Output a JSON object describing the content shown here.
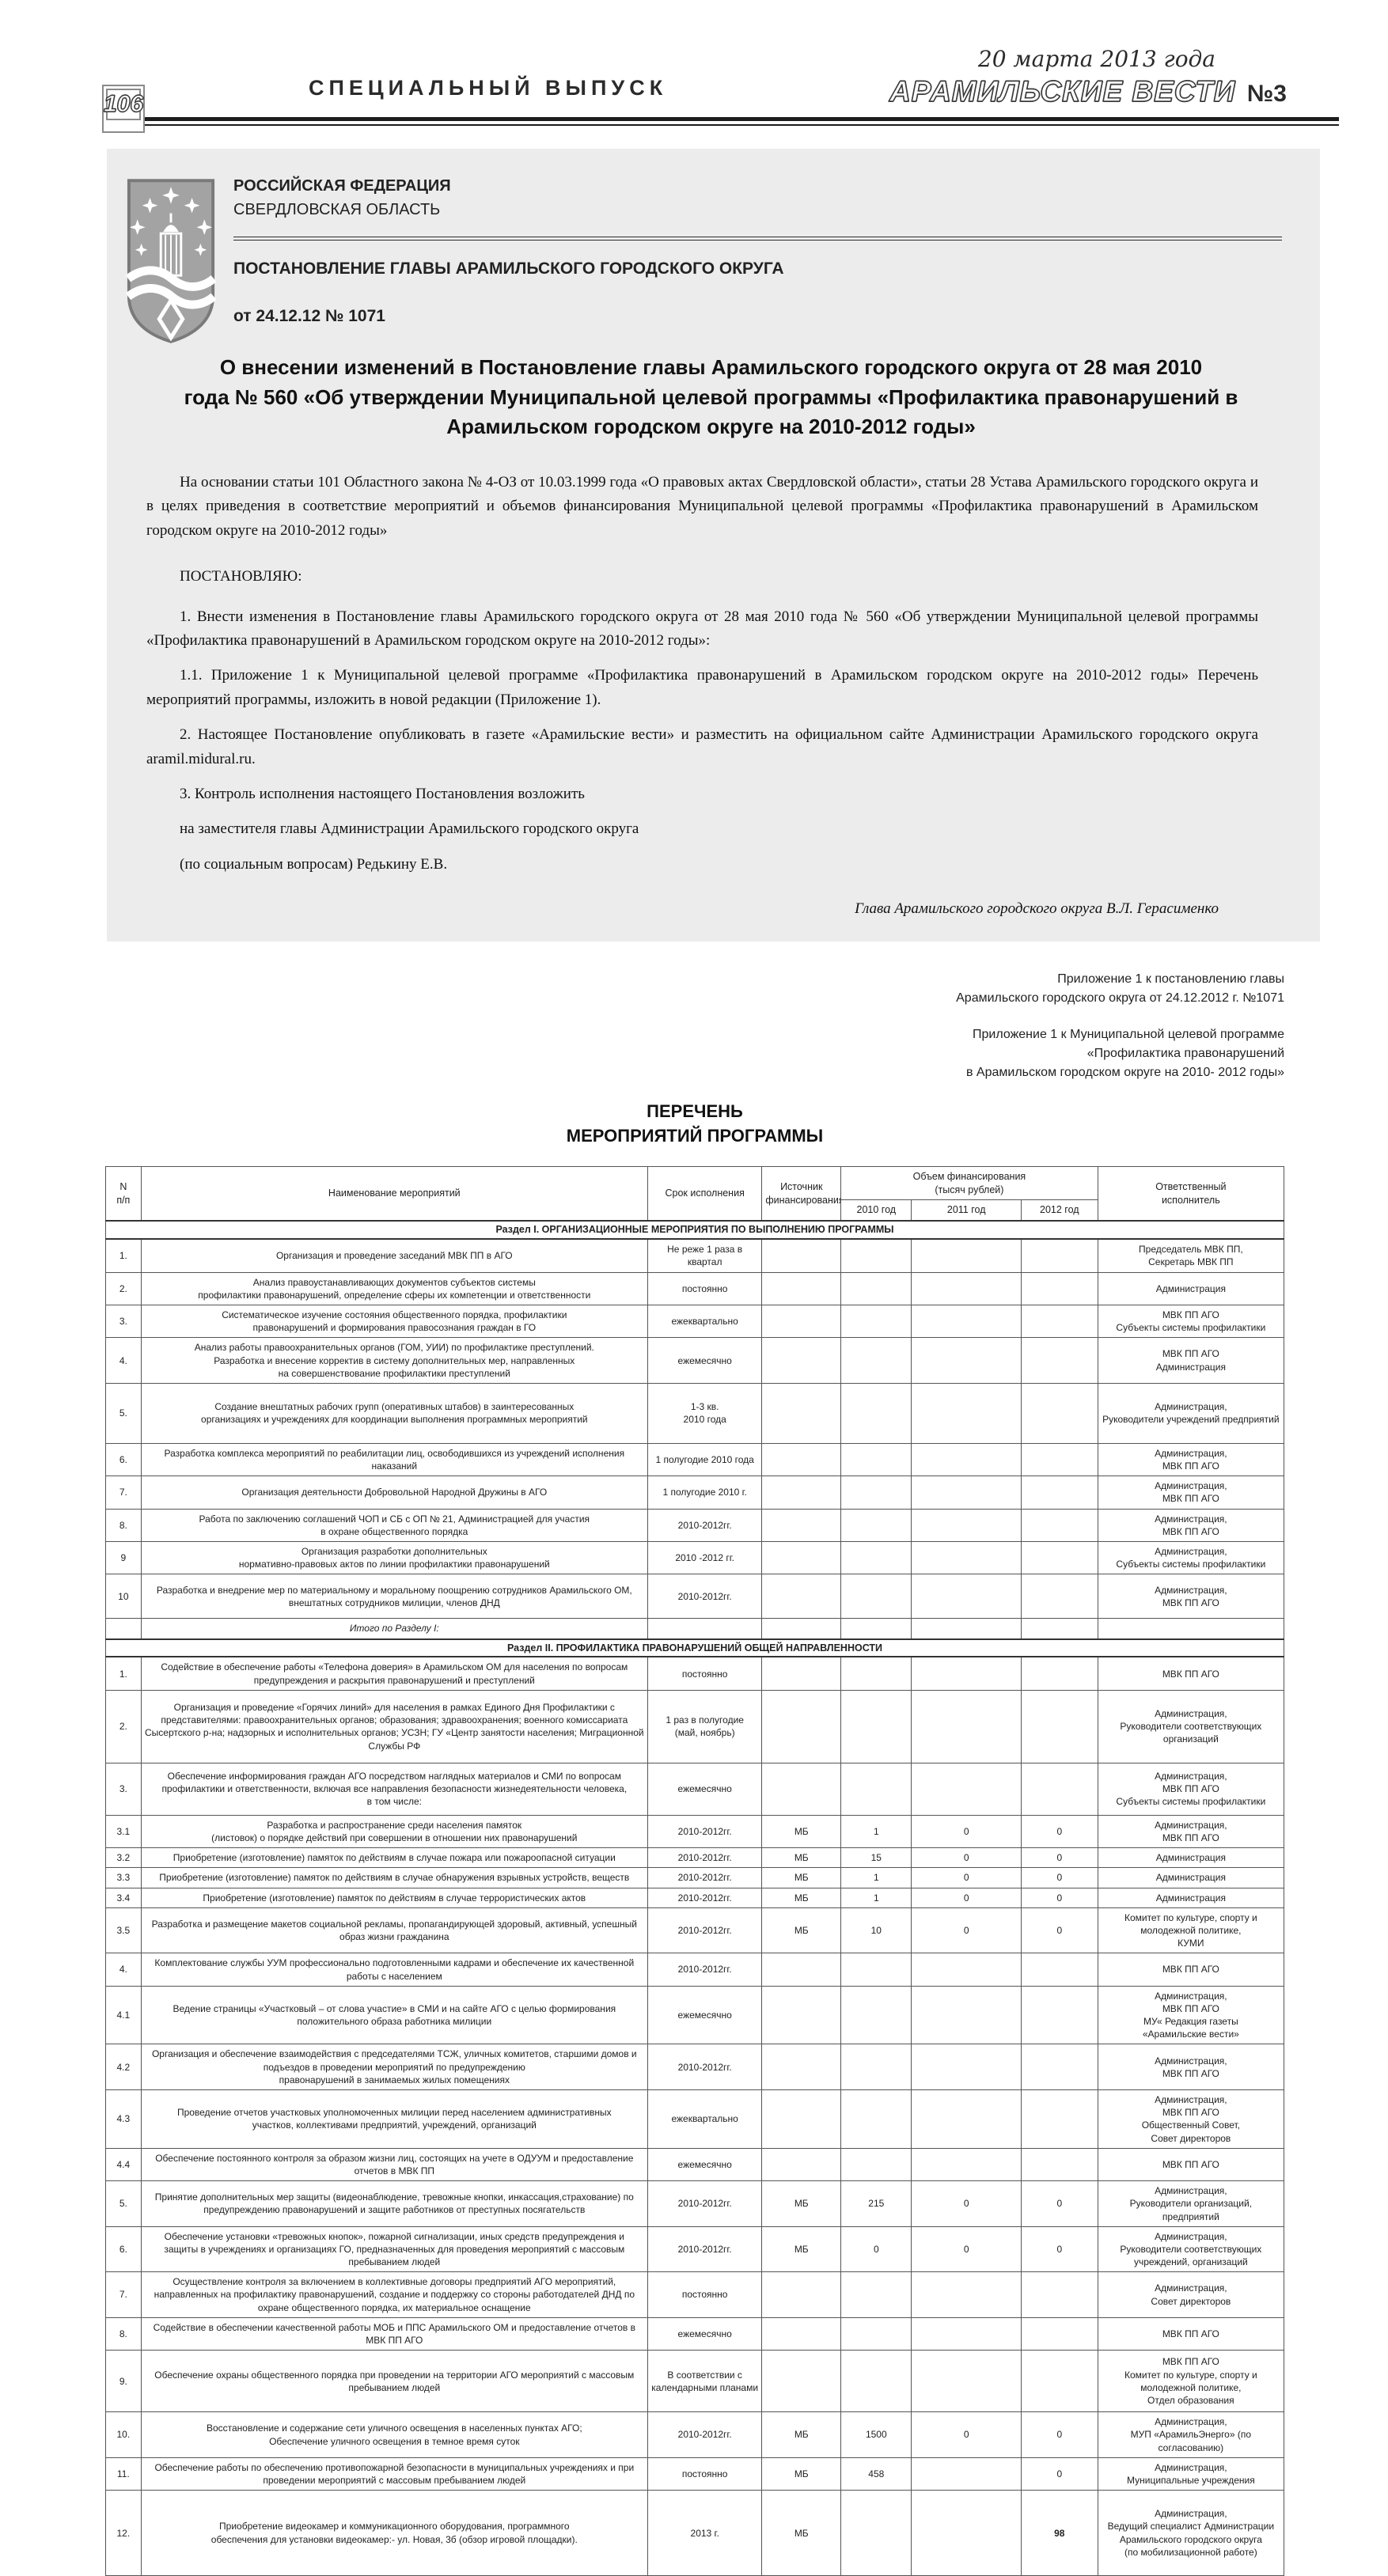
{
  "masthead": {
    "page_number": "106",
    "special_issue": "СПЕЦИАЛЬНЫЙ ВЫПУСК",
    "date": "20 марта 2013 года",
    "title": "АРАМИЛЬСКИЕ ВЕСТИ",
    "issue": "№3"
  },
  "decree": {
    "country": "РОССИЙСКАЯ ФЕДЕРАЦИЯ",
    "region": "СВЕРДЛОВСКАЯ ОБЛАСТЬ",
    "doc_type": "ПОСТАНОВЛЕНИЕ ГЛАВЫ  АРАМИЛЬСКОГО ГОРОДСКОГО ОКРУГА",
    "doc_date": "от 24.12.12 № 1071",
    "title": "О внесении изменений в Постановление главы Арамильского городского округа от 28 мая 2010\nгода № 560 «Об утверждении Муниципальной целевой программы «Профилактика правонарушений в\nАрамильском городском округе на 2010-2012 годы»",
    "preamble": "На основании статьи 101 Областного закона № 4-ОЗ от 10.03.1999 года «О правовых актах Свердловской области», статьи 28 Устава Арамильского городского округа и в целях приведения в соответствие мероприятий и объемов финансирования Муниципальной целевой программы «Профилактика правонарушений в Арамильском городском округе на 2010-2012 годы»",
    "resolve": "ПОСТАНОВЛЯЮ:",
    "p1": "1. Внести изменения в  Постановление главы Арамильского городского округа  от 28 мая 2010 года № 560 «Об утверждении Муниципальной целевой программы «Профилактика правонарушений в Арамильском городском округе на 2010-2012 годы»:",
    "p2": "1.1. Приложение 1 к Муниципальной целевой программе «Профилактика правонарушений в Арамильском городском округе на 2010-2012 годы» Перечень мероприятий программы, изложить в новой редакции (Приложение 1).",
    "p3": "2. Настоящее Постановление опубликовать в газете «Арамильские вести» и разместить на официальном сайте Администрации Арамильского городского округа aramil.midural.ru.",
    "p4": "3. Контроль исполнения настоящего Постановления возложить",
    "p5": "на заместителя главы Администрации Арамильского городского округа",
    "p6": "(по социальным вопросам) Редькину Е.В.",
    "signature": "Глава Арамильского городского округа  В.Л. Герасименко"
  },
  "appendix": {
    "block1": "Приложение 1 к постановлению главы\nАрамильского городского округа от 24.12.2012 г.  №1071",
    "block2": "Приложение 1 к Муниципальной целевой программе\n«Профилактика правонарушений\nв Арамильском городском округе  на 2010- 2012 годы»"
  },
  "list_heading": "ПЕРЕЧЕНЬ\nМЕРОПРИЯТИЙ ПРОГРАММЫ",
  "table": {
    "headers": {
      "num": "N\nп/п",
      "name": "Наименование мероприятий",
      "term": "Срок исполнения",
      "source": "Источник\nфинансирования",
      "financing": "Объем финансирования\n(тысяч рублей)",
      "y2010": "2010 год",
      "y2011": "2011 год",
      "y2012": "2012 год",
      "resp": "Ответственный\nисполнитель"
    },
    "sections": [
      {
        "title": "Раздел I. ОРГАНИЗАЦИОННЫЕ МЕРОПРИЯТИЯ ПО ВЫПОЛНЕНИЮ ПРОГРАММЫ",
        "rows": [
          {
            "num": "1.",
            "name": "Организация и проведение заседаний МВК ПП в АГО",
            "term": "Не реже 1 раза в квартал",
            "source": "",
            "y2010": "",
            "y2011": "",
            "y2012": "",
            "resp": "Председатель МВК ПП,\nСекретарь МВК ПП"
          },
          {
            "num": "2.",
            "name": "Анализ правоустанавливающих документов субъектов системы\nпрофилактики правонарушений, определение сферы их компетенции и ответственности",
            "term": "постоянно",
            "source": "",
            "y2010": "",
            "y2011": "",
            "y2012": "",
            "resp": "Администрация"
          },
          {
            "num": "3.",
            "name": "Систематическое изучение состояния общественного порядка, профилактики\nправонарушений и формирования правосознания граждан в ГО",
            "term": "ежеквартально",
            "source": "",
            "y2010": "",
            "y2011": "",
            "y2012": "",
            "resp": "МВК ПП АГО\nСубъекты системы профилактики"
          },
          {
            "num": "4.",
            "name": "Анализ работы правоохранительных органов (ГОМ, УИИ) по профилактике преступлений.\nРазработка и внесение корректив  в систему дополнительных мер,  направленных\nна совершенствование профилактики преступлений",
            "term": "ежемесячно",
            "source": "",
            "y2010": "",
            "y2011": "",
            "y2012": "",
            "resp": "МВК ПП АГО\nАдминистрация"
          },
          {
            "num": "5.",
            "name": "Создание внештатных рабочих групп (оперативных штабов) в заинтересованных\nорганизациях и учреждениях для координации выполнения программных мероприятий",
            "term": "1-3 кв.\n2010 года",
            "source": "",
            "y2010": "",
            "y2011": "",
            "y2012": "",
            "resp": "Администрация,\nРуководители учреждений предприятий",
            "h": 76
          },
          {
            "num": "6.",
            "name": "Разработка комплекса мероприятий по реабилитации лиц, освободившихся из учреждений исполнения\nнаказаний",
            "term": "1 полугодие 2010 года",
            "source": "",
            "y2010": "",
            "y2011": "",
            "y2012": "",
            "resp": "Администрация,\nМВК ПП АГО"
          },
          {
            "num": "7.",
            "name": "Организация деятельности Добровольной Народной Дружины в АГО",
            "term": "1 полугодие 2010 г.",
            "source": "",
            "y2010": "",
            "y2011": "",
            "y2012": "",
            "resp": "Администрация,\nМВК ПП АГО"
          },
          {
            "num": "8.",
            "name": "Работа по заключению соглашений ЧОП и СБ с ОП № 21,  Администрацией для участия\nв охране общественного порядка",
            "term": "2010-2012гг.",
            "source": "",
            "y2010": "",
            "y2011": "",
            "y2012": "",
            "resp": "Администрация,\nМВК ПП АГО"
          },
          {
            "num": "9",
            "name": "Организация разработки дополнительных\nнормативно-правовых актов по линии профилактики правонарушений",
            "term": "2010 -2012 гг.",
            "source": "",
            "y2010": "",
            "y2011": "",
            "y2012": "",
            "resp": "Администрация,\nСубъекты системы профилактики"
          },
          {
            "num": "10",
            "name": "Разработка  и внедрение мер по материальному и моральному поощрению сотрудников Арамильского ОМ,\nвнештатных сотрудников милиции, членов ДНД",
            "term": "2010-2012гг.",
            "source": "",
            "y2010": "",
            "y2011": "",
            "y2012": "",
            "resp": "Администрация,\nМВК ПП АГО",
            "h": 56
          },
          {
            "num": "",
            "name": "Итого по Разделу I:",
            "term": "",
            "source": "",
            "y2010": "",
            "y2011": "",
            "y2012": "",
            "resp": "",
            "italic": true
          }
        ]
      },
      {
        "title": "Раздел II. ПРОФИЛАКТИКА ПРАВОНАРУШЕНИЙ ОБЩЕЙ НАПРАВЛЕННОСТИ",
        "rows": [
          {
            "num": "1.",
            "name": "Содействие в обеспечение работы  «Телефона доверия» в Арамильском ОМ для населения по вопросам\nпредупреждения и раскрытия правонарушений и преступлений",
            "term": "постоянно",
            "source": "",
            "y2010": "",
            "y2011": "",
            "y2012": "",
            "resp": "МВК ПП АГО"
          },
          {
            "num": "2.",
            "name": "Организация и проведение «Горячих линий»  для населения в рамках Единого Дня Профилактики с\nпредставителями: правоохранительных органов; образования; здравоохранения; военного комиссариата\nСысертского р-на; надзорных и исполнительных органов; УСЗН; ГУ «Центр занятости населения; Миграционной\nСлужбы РФ",
            "term": "1 раз в полугодие\n(май, ноябрь)",
            "source": "",
            "y2010": "",
            "y2011": "",
            "y2012": "",
            "resp": "Администрация,\nРуководители соответствующих\nорганизаций",
            "h": 92
          },
          {
            "num": "3.",
            "name": "Обеспечение информирования граждан АГО посредством наглядных материалов и СМИ по вопросам\nпрофилактики и ответственности, включая все направления безопасности жизнедеятельности человека,\nв том числе:",
            "term": "ежемесячно",
            "source": "",
            "y2010": "",
            "y2011": "",
            "y2012": "",
            "resp": "Администрация,\nМВК ПП АГО\nСубъекты системы профилактики",
            "h": 66
          },
          {
            "num": "3.1",
            "name": "Разработка и распространение среди населения памяток\n(листовок) о порядке действий при совершении в отношении них правонарушений",
            "term": "2010-2012гг.",
            "source": "МБ",
            "y2010": "1",
            "y2011": "0",
            "y2012": "0",
            "resp": "Администрация,\nМВК ПП АГО"
          },
          {
            "num": "3.2",
            "name": "Приобретение (изготовление) памяток по действиям в случае пожара или пожароопасной ситуации",
            "term": "2010-2012гг.",
            "source": "МБ",
            "y2010": "15",
            "y2011": "0",
            "y2012": "0",
            "resp": "Администрация"
          },
          {
            "num": "3.3",
            "name": "Приобретение (изготовление) памяток по действиям в случае обнаружения взрывных устройств, веществ",
            "term": "2010-2012гг.",
            "source": "МБ",
            "y2010": "1",
            "y2011": "0",
            "y2012": "0",
            "resp": "Администрация"
          },
          {
            "num": "3.4",
            "name": "Приобретение (изготовление) памяток по действиям в случае террористических актов",
            "term": "2010-2012гг.",
            "source": "МБ",
            "y2010": "1",
            "y2011": "0",
            "y2012": "0",
            "resp": "Администрация"
          },
          {
            "num": "3.5",
            "name": "Разработка и размещение  макетов социальной рекламы, пропагандирующей здоровый, активный, успешный\nобраз жизни  гражданина",
            "term": "2010-2012гг.",
            "source": "МБ",
            "y2010": "10",
            "y2011": "0",
            "y2012": "0",
            "resp": "Комитет по культуре, спорту и\nмолодежной политике,\nКУМИ"
          },
          {
            "num": "4.",
            "name": "Комплектование службы УУМ профессионально подготовленными кадрами и обеспечение их качественной\nработы с населением",
            "term": "2010-2012гг.",
            "source": "",
            "y2010": "",
            "y2011": "",
            "y2012": "",
            "resp": "МВК ПП АГО"
          },
          {
            "num": "4.1",
            "name": "Ведение страницы «Участковый – от слова участие» в СМИ  и на сайте АГО с целью формирования\nположительного образа работника милиции",
            "term": "ежемесячно",
            "source": "",
            "y2010": "",
            "y2011": "",
            "y2012": "",
            "resp": "Администрация,\nМВК ПП АГО\nМУ« Редакция газеты\n«Арамильские вести»"
          },
          {
            "num": "4.2",
            "name": "Организация и обеспечение взаимодействия с председателями ТСЖ, уличных комитетов, старшими домов и\nподъездов в проведении мероприятий по предупреждению\nправонарушений в занимаемых жилых помещениях",
            "term": "2010-2012гг.",
            "source": "",
            "y2010": "",
            "y2011": "",
            "y2012": "",
            "resp": "Администрация,\nМВК ПП АГО"
          },
          {
            "num": "4.3",
            "name": "Проведение отчетов участковых уполномоченных милиции перед населением административных\nучастков, коллективами предприятий, учреждений, организаций",
            "term": "ежеквартально",
            "source": "",
            "y2010": "",
            "y2011": "",
            "y2012": "",
            "resp": "Администрация,\nМВК ПП АГО\nОбщественный Совет,\nСовет директоров"
          },
          {
            "num": "4.4",
            "name": "Обеспечение постоянного контроля за образом жизни лиц, состоящих на учете в ОДУУМ и предоставление\nотчетов в МВК ПП",
            "term": "ежемесячно",
            "source": "",
            "y2010": "",
            "y2011": "",
            "y2012": "",
            "resp": "МВК ПП АГО"
          },
          {
            "num": "5.",
            "name": "Принятие дополнительных мер защиты (видеонаблюдение, тревожные кнопки, инкассация,страхование) по\nпредупреждению правонарушений и защите работников от преступных посягательств",
            "term": "2010-2012гг.",
            "source": "МБ",
            "y2010": "215",
            "y2011": "0",
            "y2012": "0",
            "resp": "Администрация,\nРуководители организаций, предприятий"
          },
          {
            "num": "6.",
            "name": "Обеспечение  установки «тревожных кнопок», пожарной сигнализации, иных средств предупреждения и\nзащиты  в учреждениях и организациях ГО, предназначенных  для проведения мероприятий с массовым\nпребыванием людей",
            "term": "2010-2012гг.",
            "source": "МБ",
            "y2010": "0",
            "y2011": "0",
            "y2012": "0",
            "resp": "Администрация,\nРуководители соответствующих\nучреждений, организаций"
          },
          {
            "num": "7.",
            "name": "Осуществление  контроля  за включением в коллективные договоры предприятий АГО мероприятий,\nнаправленных на профилактику правонарушений, создание и поддержку со стороны работодателей ДНД по\nохране общественного порядка, их материальное оснащение",
            "term": "постоянно",
            "source": "",
            "y2010": "",
            "y2011": "",
            "y2012": "",
            "resp": "Администрация,\nСовет директоров"
          },
          {
            "num": "8.",
            "name": "Содействие в обеспечении качественной работы МОБ и ППС Арамильского ОМ и предоставление отчетов в\nМВК ПП АГО",
            "term": "ежемесячно",
            "source": "",
            "y2010": "",
            "y2011": "",
            "y2012": "",
            "resp": "МВК ПП АГО"
          },
          {
            "num": "9.",
            "name": "Обеспечение охраны общественного порядка при проведении на территории АГО мероприятий с массовым\nпребыванием людей",
            "term": "В соответствии с\nкалендарными планами",
            "source": "",
            "y2010": "",
            "y2011": "",
            "y2012": "",
            "resp": "МВК ПП АГО\nКомитет по культуре, спорту и\nмолодежной политике,\nОтдел образования",
            "h": 78
          },
          {
            "num": "10.",
            "name": "Восстановление и содержание сети уличного освещения  в населенных пунктах АГО;\nОбеспечение уличного освещения в темное время суток",
            "term": "2010-2012гг.",
            "source": "МБ",
            "y2010": "1500",
            "y2011": "0",
            "y2012": "0",
            "resp": "Администрация,\nМУП «АрамильЭнерго» (по согласованию)"
          },
          {
            "num": "11.",
            "name": "Обеспечение работы по обеспечению противопожарной безопасности  в муниципальных учреждениях и при\nпроведении мероприятий с массовым пребыванием людей",
            "term": "постоянно",
            "source": "МБ",
            "y2010": "458",
            "y2011": "",
            "y2012": "0",
            "resp": "Администрация,\nМуниципальные учреждения"
          },
          {
            "num": "12.",
            "name": "Приобретение видеокамер  и коммуникационного оборудования, программного\nобеспечения для установки видеокамер:- ул. Новая, 3б (обзор игровой площадки).",
            "term": "2013 г.",
            "source": "МБ",
            "y2010": "",
            "y2011": "",
            "y2012": "98",
            "resp": "Администрация,\nВедущий специалист Администрации\nАрамильского городского округа\n(по мобилизационной работе)",
            "h": 108,
            "bold2012": true
          }
        ]
      }
    ]
  }
}
